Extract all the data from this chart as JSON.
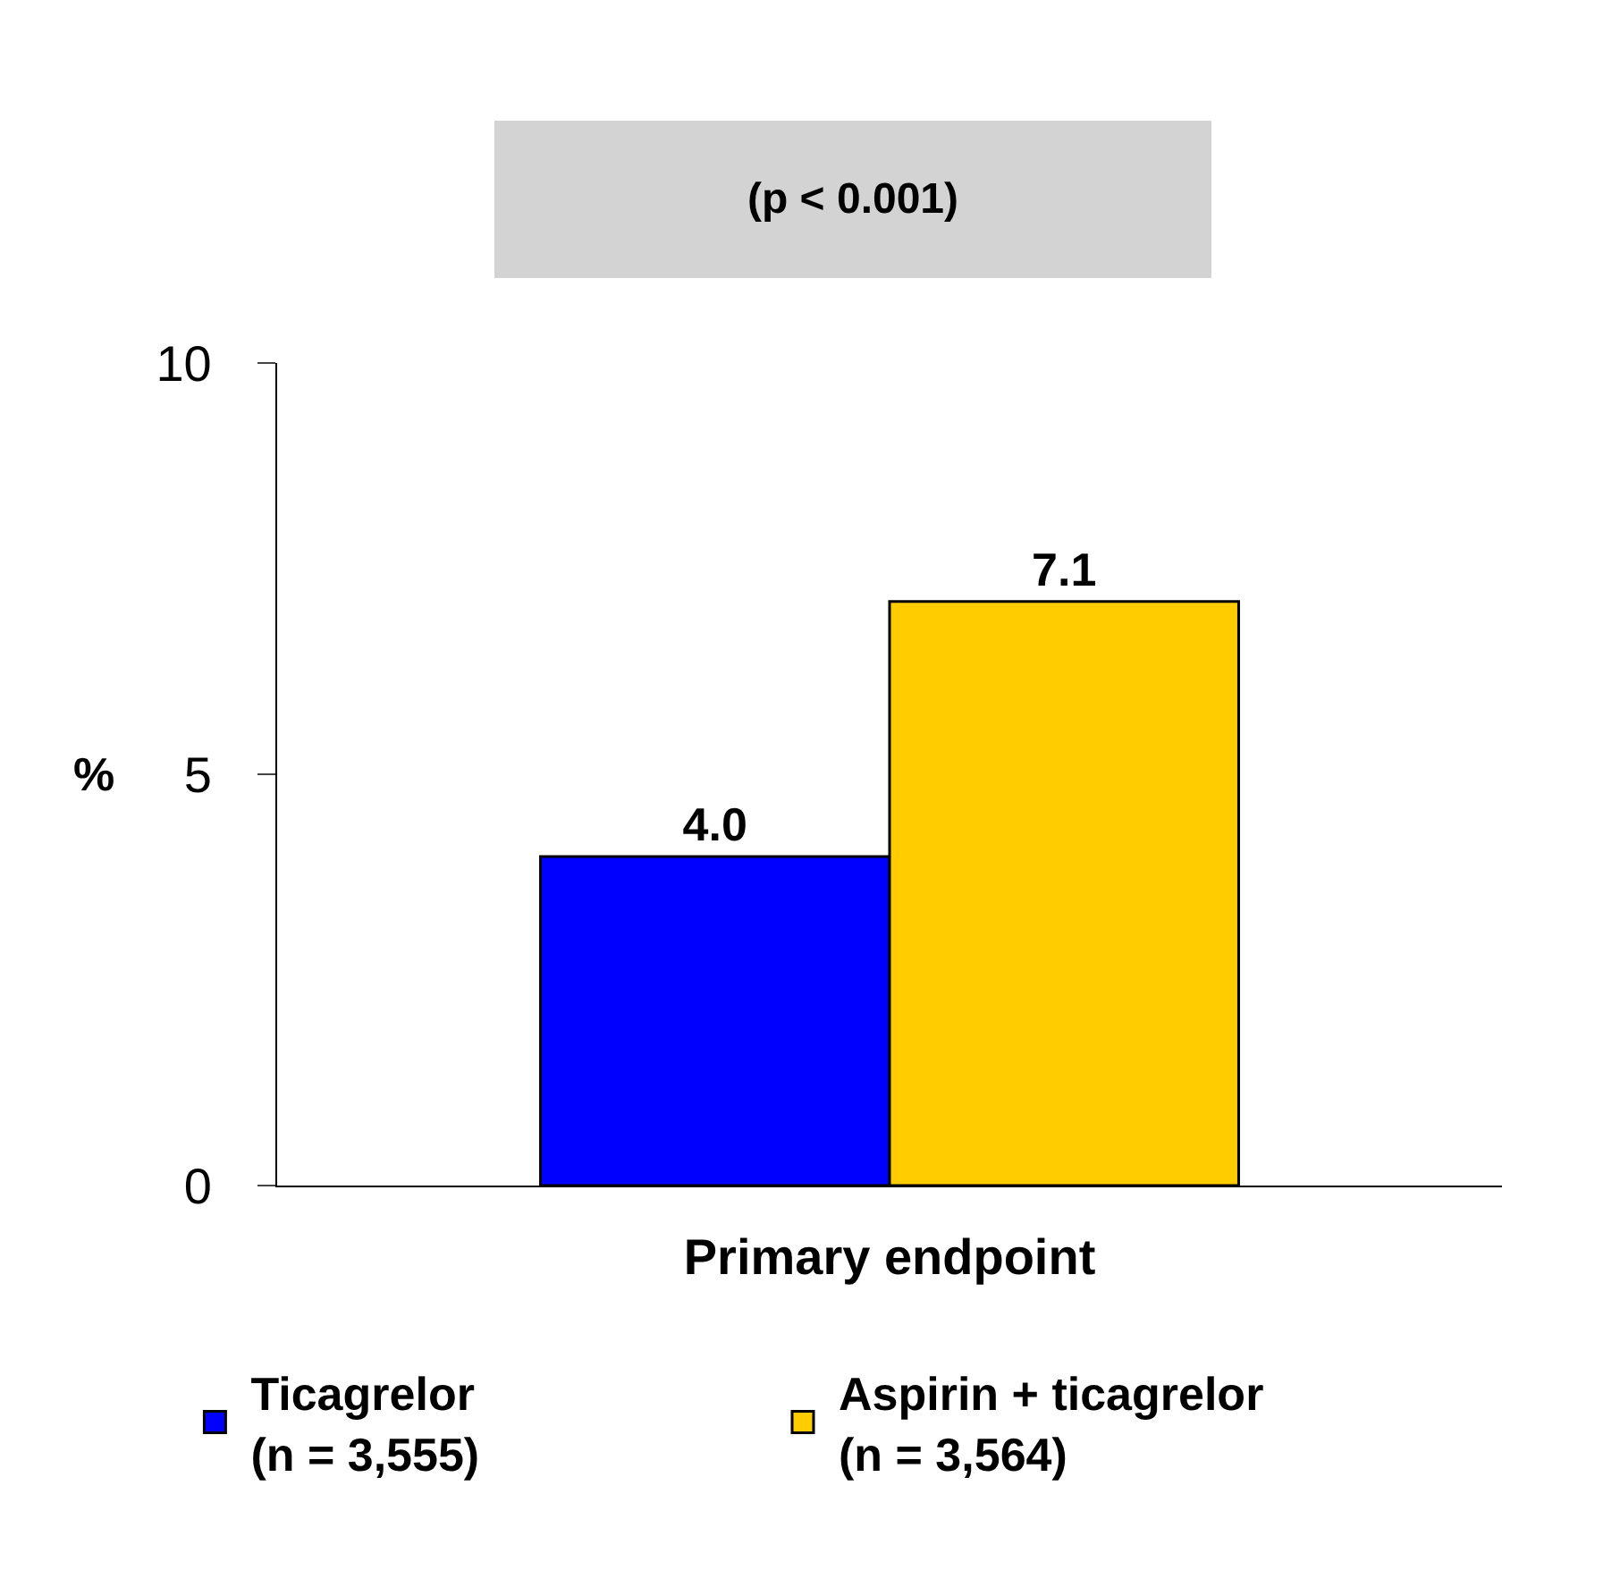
{
  "chart_data": {
    "type": "bar",
    "categories": [
      "Primary endpoint"
    ],
    "series": [
      {
        "name": "Ticagrelor\n(n = 3,555)",
        "color": "#0000ff",
        "values": [
          4.0
        ],
        "value_labels": [
          "4.0"
        ]
      },
      {
        "name": "Aspirin + ticagrelor\n(n = 3,564)",
        "color": "#ffcc00",
        "values": [
          7.1
        ],
        "value_labels": [
          "7.1"
        ]
      }
    ],
    "ylabel": "%",
    "ylim": [
      0,
      10
    ],
    "yticks": [
      0,
      5,
      10
    ],
    "legend": "bottom",
    "annotations": [
      "(p < 0.001)"
    ]
  }
}
